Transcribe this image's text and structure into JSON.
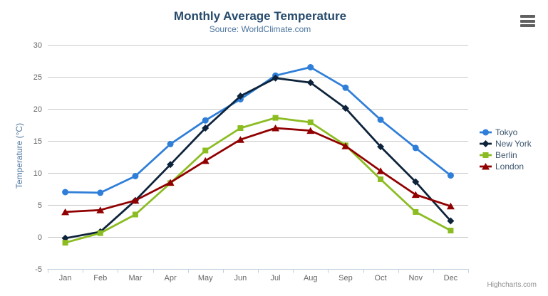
{
  "credits": "Highcharts.com",
  "export_menu": {
    "icon": "hamburger-menu",
    "color": "#606060"
  },
  "palette": {
    "title": "#274b6d",
    "subtitle": "#4d759e",
    "axis_label": "#666666",
    "grid_line": "#c9c9c9",
    "axis_line": "#c0d0e0",
    "legend_text": "#3e576f",
    "credits": "#909090"
  },
  "chart_data": {
    "type": "line",
    "title": "Monthly Average Temperature",
    "subtitle": "Source: WorldClimate.com",
    "xlabel": "",
    "ylabel": "Temperature (°C)",
    "categories": [
      "Jan",
      "Feb",
      "Mar",
      "Apr",
      "May",
      "Jun",
      "Jul",
      "Aug",
      "Sep",
      "Oct",
      "Nov",
      "Dec"
    ],
    "ylim": [
      -5,
      30
    ],
    "ytick_interval": 5,
    "yticks": [
      -5,
      0,
      5,
      10,
      15,
      20,
      25,
      30
    ],
    "grid": true,
    "legend_position": "right",
    "series": [
      {
        "name": "Tokyo",
        "color": "#2f7ed8",
        "marker": "circle",
        "values": [
          7.0,
          6.9,
          9.5,
          14.5,
          18.2,
          21.5,
          25.2,
          26.5,
          23.3,
          18.3,
          13.9,
          9.6
        ]
      },
      {
        "name": "New York",
        "color": "#0d233a",
        "marker": "diamond",
        "values": [
          -0.2,
          0.8,
          5.7,
          11.3,
          17.0,
          22.0,
          24.8,
          24.1,
          20.1,
          14.1,
          8.6,
          2.5
        ]
      },
      {
        "name": "Berlin",
        "color": "#8bbc21",
        "marker": "square",
        "values": [
          -0.9,
          0.6,
          3.5,
          8.4,
          13.5,
          17.0,
          18.6,
          17.9,
          14.3,
          9.0,
          3.9,
          1.0
        ]
      },
      {
        "name": "London",
        "color": "#910000",
        "marker": "triangle",
        "values": [
          3.9,
          4.2,
          5.7,
          8.5,
          11.9,
          15.2,
          17.0,
          16.6,
          14.2,
          10.3,
          6.6,
          4.8
        ]
      }
    ]
  }
}
